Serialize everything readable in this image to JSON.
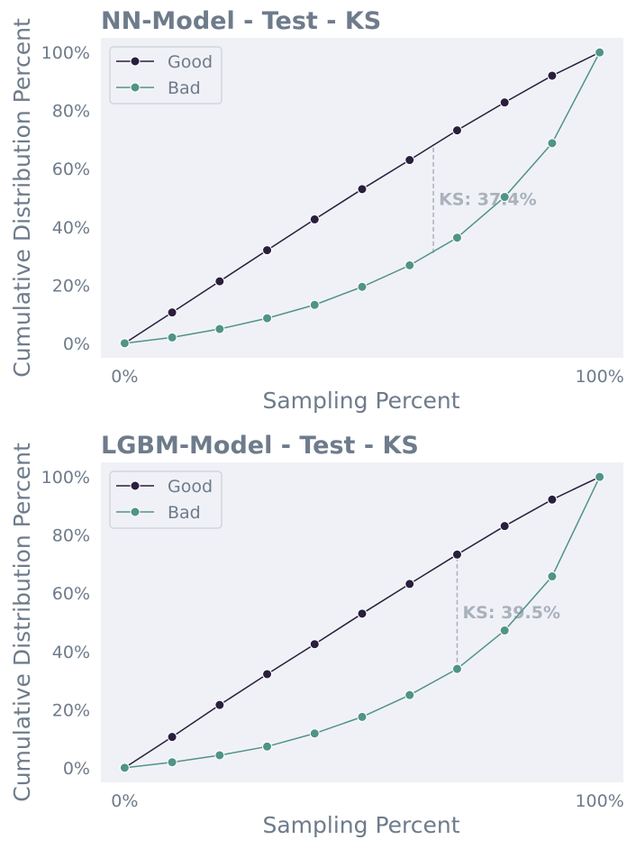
{
  "colors": {
    "good": "#2a1e3d",
    "bad": "#4f9486",
    "plot_background": "#f0f1f6",
    "text": "#6e7b8b",
    "ks_line": "#a9b1bd",
    "ks_text": "#a9b1bd"
  },
  "chart_data": [
    {
      "type": "line",
      "title": "NN-Model - Test - KS",
      "xlabel": "Sampling Percent",
      "ylabel": "Cumulative Distribution Percent",
      "x": [
        0,
        10,
        20,
        30,
        40,
        50,
        60,
        70,
        80,
        90,
        100
      ],
      "xticks": [
        0,
        100
      ],
      "xtick_labels": [
        "0%",
        "100%"
      ],
      "yticks": [
        0,
        20,
        40,
        60,
        80,
        100
      ],
      "ytick_labels": [
        "0%",
        "20%",
        "40%",
        "60%",
        "80%",
        "100%"
      ],
      "xlim": [
        -5,
        105
      ],
      "ylim": [
        -5,
        105
      ],
      "grid": false,
      "legend_position": "top-left",
      "series": [
        {
          "name": "Good",
          "color_key": "good",
          "values": [
            0,
            10.6,
            21.3,
            32,
            42.6,
            53,
            63,
            73.2,
            82.8,
            92,
            100
          ]
        },
        {
          "name": "Bad",
          "color_key": "bad",
          "values": [
            0,
            2,
            4.9,
            8.6,
            13.2,
            19.4,
            26.8,
            36.3,
            50.3,
            68.8,
            100
          ]
        }
      ],
      "ks": {
        "label": "KS: 37.4%",
        "value": 37.4,
        "x": 65,
        "y_bad": 31,
        "y_good": 68.4
      }
    },
    {
      "type": "line",
      "title": "LGBM-Model - Test - KS",
      "xlabel": "Sampling Percent",
      "ylabel": "Cumulative Distribution Percent",
      "x": [
        0,
        10,
        20,
        30,
        40,
        50,
        60,
        70,
        80,
        90,
        100
      ],
      "xticks": [
        0,
        100
      ],
      "xtick_labels": [
        "0%",
        "100%"
      ],
      "yticks": [
        0,
        20,
        40,
        60,
        80,
        100
      ],
      "ytick_labels": [
        "0%",
        "20%",
        "40%",
        "60%",
        "80%",
        "100%"
      ],
      "xlim": [
        -5,
        105
      ],
      "ylim": [
        -5,
        105
      ],
      "grid": false,
      "legend_position": "top-left",
      "series": [
        {
          "name": "Good",
          "color_key": "good",
          "values": [
            0,
            10.6,
            21.6,
            32.2,
            42.5,
            53,
            63.2,
            73.3,
            83.1,
            92.2,
            100
          ]
        },
        {
          "name": "Bad",
          "color_key": "bad",
          "values": [
            0,
            1.9,
            4.3,
            7.3,
            11.8,
            17.5,
            25,
            34,
            47.2,
            65.8,
            100
          ]
        }
      ],
      "ks": {
        "label": "KS: 39.5%",
        "value": 39.5,
        "x": 70,
        "y_bad": 33.8,
        "y_good": 73.3
      }
    }
  ]
}
